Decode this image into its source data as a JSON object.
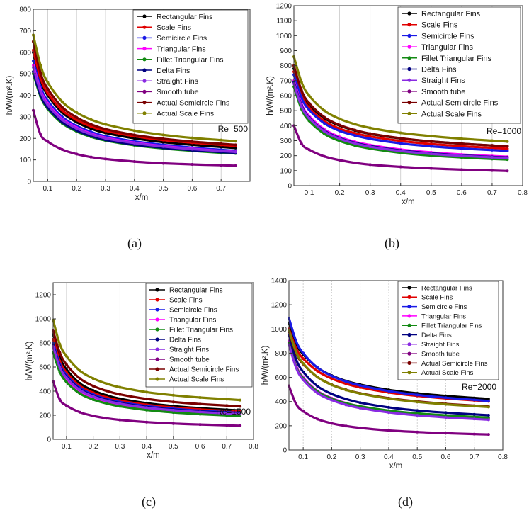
{
  "figure": {
    "captions": [
      "(a)",
      "(b)",
      "(c)",
      "(d)"
    ]
  },
  "series_names": [
    "Rectangular Fins",
    "Scale Fins",
    "Semicircle Fins",
    "Triangular Fins",
    "Fillet Triangular Fins",
    "Delta Fins",
    "Straight Fins",
    "Smooth tube",
    "Actual Semicircle Fins",
    "Actual  Scale Fins"
  ],
  "series_colors": [
    "#000000",
    "#e00000",
    "#1a1ae6",
    "#ff00ff",
    "#138a13",
    "#000080",
    "#8a2be2",
    "#800080",
    "#7a0000",
    "#808000"
  ],
  "chart_data": [
    {
      "type": "line",
      "panel": "(a)",
      "title": "",
      "annotation": "Re=500",
      "xlabel": "x/m",
      "ylabel": "h/W/(m².K)",
      "xlim": [
        0.05,
        0.8
      ],
      "ylim": [
        0,
        800
      ],
      "xticks": [
        0.1,
        0.2,
        0.3,
        0.4,
        0.5,
        0.6,
        0.7
      ],
      "yticks": [
        0,
        100,
        200,
        300,
        400,
        500,
        600,
        700,
        800
      ],
      "grid": "vertical",
      "legend_position": "top-right",
      "x": [
        0.05,
        0.075,
        0.1,
        0.15,
        0.2,
        0.25,
        0.3,
        0.4,
        0.5,
        0.6,
        0.7,
        0.75
      ],
      "series": [
        {
          "name": "Rectangular Fins",
          "values": [
            600,
            470,
            400,
            320,
            275,
            245,
            225,
            200,
            182,
            170,
            160,
            155
          ]
        },
        {
          "name": "Scale Fins",
          "values": [
            610,
            480,
            410,
            330,
            285,
            255,
            235,
            210,
            192,
            180,
            170,
            165
          ]
        },
        {
          "name": "Semicircle Fins",
          "values": [
            560,
            440,
            375,
            300,
            258,
            230,
            210,
            186,
            170,
            157,
            147,
            143
          ]
        },
        {
          "name": "Triangular Fins",
          "values": [
            540,
            425,
            362,
            290,
            250,
            222,
            203,
            180,
            164,
            152,
            142,
            138
          ]
        },
        {
          "name": "Fillet Triangular Fins",
          "values": [
            500,
            395,
            337,
            270,
            232,
            207,
            190,
            168,
            153,
            142,
            133,
            130
          ]
        },
        {
          "name": "Delta Fins",
          "values": [
            510,
            402,
            343,
            275,
            237,
            211,
            193,
            171,
            156,
            145,
            136,
            133
          ]
        },
        {
          "name": "Straight Fins",
          "values": [
            530,
            418,
            356,
            286,
            246,
            219,
            200,
            178,
            162,
            150,
            141,
            137
          ]
        },
        {
          "name": "Smooth tube",
          "values": [
            330,
            218,
            185,
            148,
            127,
            113,
            104,
            92,
            84,
            79,
            75,
            73
          ]
        },
        {
          "name": "Actual Semicircle Fins",
          "values": [
            650,
            505,
            430,
            345,
            297,
            265,
            243,
            216,
            198,
            185,
            175,
            170
          ]
        },
        {
          "name": "Actual  Scale Fins",
          "values": [
            680,
            540,
            460,
            370,
            320,
            287,
            265,
            236,
            216,
            202,
            192,
            187
          ]
        }
      ]
    },
    {
      "type": "line",
      "panel": "(b)",
      "title": "",
      "annotation": "Re=1000",
      "xlabel": "x/m",
      "ylabel": "h/W/(m².K)",
      "xlim": [
        0.05,
        0.8
      ],
      "ylim": [
        0,
        1200
      ],
      "xticks": [
        0.1,
        0.2,
        0.3,
        0.4,
        0.5,
        0.6,
        0.7,
        0.8
      ],
      "yticks": [
        0,
        100,
        200,
        300,
        400,
        500,
        600,
        700,
        800,
        900,
        1000,
        1100,
        1200
      ],
      "grid": "vertical",
      "legend_position": "top-right",
      "x": [
        0.05,
        0.075,
        0.1,
        0.15,
        0.2,
        0.25,
        0.3,
        0.4,
        0.5,
        0.6,
        0.7,
        0.75
      ],
      "series": [
        {
          "name": "Rectangular Fins",
          "values": [
            780,
            620,
            540,
            450,
            400,
            368,
            345,
            315,
            295,
            280,
            268,
            262
          ]
        },
        {
          "name": "Scale Fins",
          "values": [
            760,
            600,
            520,
            430,
            380,
            350,
            328,
            298,
            278,
            263,
            252,
            246
          ]
        },
        {
          "name": "Semicircle Fins",
          "values": [
            740,
            585,
            505,
            415,
            365,
            335,
            312,
            282,
            262,
            248,
            237,
            232
          ]
        },
        {
          "name": "Triangular Fins",
          "values": [
            700,
            545,
            465,
            375,
            325,
            293,
            271,
            241,
            222,
            208,
            198,
            193
          ]
        },
        {
          "name": "Fillet Triangular Fins",
          "values": [
            660,
            510,
            432,
            345,
            298,
            268,
            247,
            219,
            201,
            188,
            178,
            174
          ]
        },
        {
          "name": "Delta Fins",
          "values": [
            690,
            535,
            455,
            366,
            317,
            286,
            264,
            235,
            216,
            202,
            192,
            188
          ]
        },
        {
          "name": "Straight Fins",
          "values": [
            680,
            528,
            450,
            362,
            313,
            282,
            260,
            231,
            212,
            199,
            189,
            185
          ]
        },
        {
          "name": "Smooth tube",
          "values": [
            400,
            280,
            240,
            195,
            170,
            152,
            140,
            125,
            115,
            107,
            101,
            98
          ]
        },
        {
          "name": "Actual Semicircle Fins",
          "values": [
            800,
            635,
            550,
            456,
            404,
            371,
            347,
            316,
            295,
            280,
            268,
            263
          ]
        },
        {
          "name": "Actual  Scale Fins",
          "values": [
            860,
            690,
            600,
            500,
            445,
            410,
            385,
            352,
            330,
            313,
            300,
            294
          ]
        }
      ]
    },
    {
      "type": "line",
      "panel": "(c)",
      "title": "",
      "annotation": "Re=1500",
      "xlabel": "x/m",
      "ylabel": "h/W/(m².K)",
      "xlim": [
        0.05,
        0.8
      ],
      "ylim": [
        0,
        1300
      ],
      "xticks": [
        0.1,
        0.2,
        0.3,
        0.4,
        0.5,
        0.6,
        0.7,
        0.8
      ],
      "yticks": [
        0,
        200,
        400,
        600,
        800,
        1000,
        1200
      ],
      "grid": "vertical",
      "legend_position": "top-right",
      "x": [
        0.05,
        0.075,
        0.1,
        0.15,
        0.2,
        0.25,
        0.3,
        0.4,
        0.5,
        0.6,
        0.7,
        0.75
      ],
      "series": [
        {
          "name": "Rectangular Fins",
          "values": [
            870,
            680,
            580,
            465,
            405,
            365,
            337,
            300,
            276,
            259,
            246,
            240
          ]
        },
        {
          "name": "Scale Fins",
          "values": [
            830,
            650,
            555,
            445,
            387,
            348,
            322,
            287,
            264,
            248,
            236,
            230
          ]
        },
        {
          "name": "Semicircle Fins",
          "values": [
            800,
            625,
            533,
            428,
            372,
            335,
            310,
            276,
            254,
            238,
            226,
            221
          ]
        },
        {
          "name": "Triangular Fins",
          "values": [
            760,
            590,
            502,
            402,
            348,
            313,
            289,
            257,
            236,
            221,
            210,
            205
          ]
        },
        {
          "name": "Fillet Triangular Fins",
          "values": [
            720,
            560,
            475,
            380,
            330,
            297,
            274,
            243,
            223,
            209,
            198,
            194
          ]
        },
        {
          "name": "Delta Fins",
          "values": [
            780,
            610,
            520,
            418,
            363,
            327,
            302,
            269,
            247,
            232,
            220,
            215
          ]
        },
        {
          "name": "Straight Fins",
          "values": [
            770,
            600,
            511,
            410,
            356,
            320,
            296,
            263,
            242,
            227,
            215,
            210
          ]
        },
        {
          "name": "Smooth tube",
          "values": [
            480,
            330,
            280,
            225,
            195,
            175,
            161,
            143,
            131,
            123,
            116,
            113
          ]
        },
        {
          "name": "Actual Semicircle Fins",
          "values": [
            900,
            720,
            620,
            505,
            443,
            402,
            373,
            335,
            310,
            293,
            280,
            274
          ]
        },
        {
          "name": "Actual  Scale Fins",
          "values": [
            990,
            790,
            690,
            570,
            505,
            462,
            432,
            392,
            366,
            347,
            333,
            326
          ]
        }
      ]
    },
    {
      "type": "line",
      "panel": "(d)",
      "title": "",
      "annotation": "Re=2000",
      "xlabel": "x/m",
      "ylabel": "h/W/(m².K)",
      "xlim": [
        0.05,
        0.8
      ],
      "ylim": [
        0,
        1400
      ],
      "xticks": [
        0.1,
        0.2,
        0.3,
        0.4,
        0.5,
        0.6,
        0.7,
        0.8
      ],
      "yticks": [
        0,
        200,
        400,
        600,
        800,
        1000,
        1200,
        1400
      ],
      "grid": "vertical",
      "legend_position": "top-right",
      "x": [
        0.05,
        0.075,
        0.1,
        0.15,
        0.2,
        0.25,
        0.3,
        0.4,
        0.5,
        0.6,
        0.7,
        0.75
      ],
      "series": [
        {
          "name": "Rectangular Fins",
          "values": [
            1050,
            880,
            790,
            680,
            615,
            570,
            540,
            497,
            468,
            447,
            430,
            422
          ]
        },
        {
          "name": "Scale Fins",
          "values": [
            1000,
            840,
            755,
            652,
            590,
            547,
            517,
            475,
            447,
            426,
            410,
            402
          ]
        },
        {
          "name": "Semicircle Fins",
          "values": [
            1090,
            900,
            800,
            680,
            612,
            566,
            533,
            487,
            455,
            432,
            414,
            405
          ]
        },
        {
          "name": "Triangular Fins",
          "values": [
            900,
            700,
            600,
            488,
            428,
            388,
            360,
            322,
            298,
            280,
            267,
            260
          ]
        },
        {
          "name": "Fillet Triangular Fins",
          "values": [
            880,
            690,
            592,
            483,
            424,
            386,
            360,
            325,
            302,
            286,
            273,
            267
          ]
        },
        {
          "name": "Delta Fins",
          "values": [
            950,
            750,
            645,
            527,
            463,
            421,
            391,
            352,
            326,
            308,
            294,
            287
          ]
        },
        {
          "name": "Straight Fins",
          "values": [
            870,
            680,
            580,
            470,
            412,
            373,
            346,
            310,
            286,
            269,
            256,
            250
          ]
        },
        {
          "name": "Smooth tube",
          "values": [
            530,
            380,
            320,
            255,
            220,
            198,
            182,
            161,
            148,
            139,
            131,
            128
          ]
        },
        {
          "name": "Actual Semicircle Fins",
          "values": [
            980,
            800,
            710,
            602,
            540,
            498,
            468,
            428,
            401,
            381,
            366,
            359
          ]
        },
        {
          "name": "Actual  Scale Fins",
          "values": [
            990,
            810,
            715,
            602,
            538,
            496,
            466,
            425,
            397,
            377,
            362,
            355
          ]
        }
      ]
    }
  ]
}
